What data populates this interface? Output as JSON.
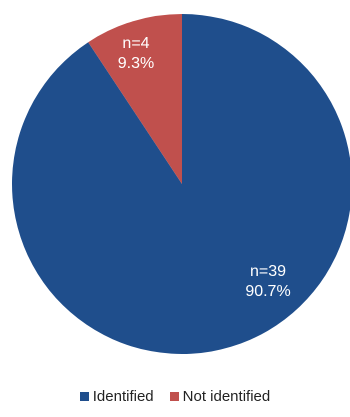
{
  "chart_data": {
    "type": "pie",
    "categories": [
      "Identified",
      "Not identified"
    ],
    "values": [
      39,
      4
    ],
    "percents": [
      "90.7%",
      "9.3%"
    ],
    "count_labels": [
      "n=39",
      "n=4"
    ],
    "colors": [
      "#1f4e8c",
      "#c0504d"
    ],
    "start_at": "top",
    "direction": "clockwise",
    "legend": {
      "position": "bottom",
      "items": [
        "Identified",
        "Not identified"
      ]
    }
  }
}
